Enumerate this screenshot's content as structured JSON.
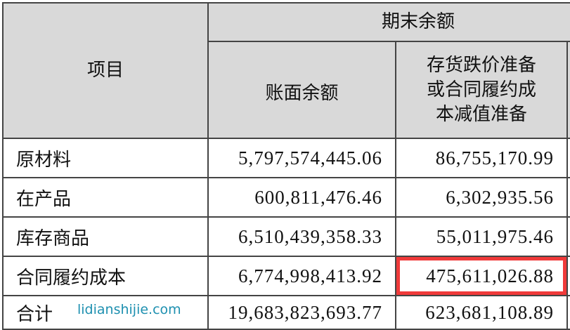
{
  "header": {
    "item": "项目",
    "group": "期末余额",
    "book_balance": "账面余额",
    "provision_lines": [
      "存货跌价准备",
      "或合同履约成",
      "本减值准备"
    ]
  },
  "rows": [
    {
      "label": "原材料",
      "book": "5,797,574,445.06",
      "provision": "86,755,170.99"
    },
    {
      "label": "在产品",
      "book": "600,811,476.46",
      "provision": "6,302,935.56"
    },
    {
      "label": "库存商品",
      "book": "6,510,439,358.33",
      "provision": "55,011,975.46"
    },
    {
      "label": "合同履约成本",
      "book": "6,774,998,413.92",
      "provision": "475,611,026.88",
      "highlighted": true
    },
    {
      "label": "合计",
      "book": "19,683,823,693.77",
      "provision": "623,681,108.89"
    }
  ],
  "highlight_color": "#f03a3a",
  "header_bg": "#d9d9d9",
  "watermark": "lidianshijie.com"
}
